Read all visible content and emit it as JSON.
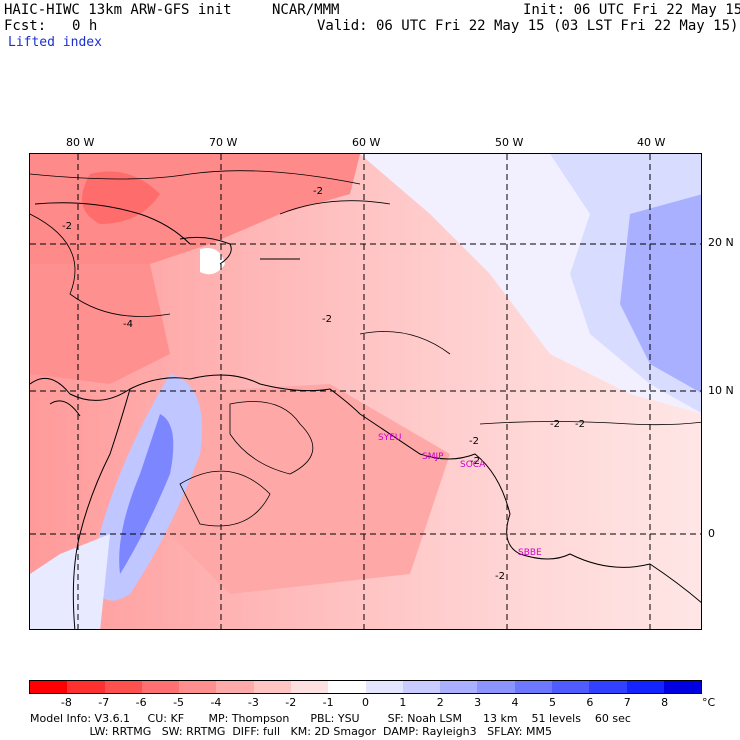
{
  "header": {
    "model_title": "HAIC-HIWC 13km ARW-GFS init",
    "org": "NCAR/MMM",
    "init": "Init: 06 UTC Fri 22 May 15",
    "fcst_label": "Fcst:",
    "fcst_value": "0 h",
    "valid": "Valid: 06 UTC Fri 22 May 15 (03 LST Fri 22 May 15)",
    "field": "Lifted index"
  },
  "map": {
    "lon_labels": [
      "80 W",
      "70 W",
      "60 W",
      "50 W",
      "40 W"
    ],
    "lat_labels": [
      "20 N",
      "10 N",
      "0"
    ],
    "contour_labels": [
      "-2",
      "-2",
      "-4",
      "-2",
      "-2",
      "-2",
      "-2",
      "-2",
      "-2"
    ],
    "stations": [
      "SYEU",
      "SMJP",
      "SOCA",
      "SBBE"
    ]
  },
  "colorbar": {
    "colors": [
      "#ff0000",
      "#ff3030",
      "#ff5050",
      "#ff7070",
      "#ff8e8e",
      "#ffaaaa",
      "#ffc4c4",
      "#ffe0e0",
      "#ffffff",
      "#e4e6ff",
      "#c8ccff",
      "#aab0ff",
      "#8c94ff",
      "#6e78ff",
      "#505cff",
      "#3240ff",
      "#1424ff",
      "#0000e0"
    ],
    "ticks": [
      "-8",
      "-7",
      "-6",
      "-5",
      "-4",
      "-3",
      "-2",
      "-1",
      "0",
      "1",
      "2",
      "3",
      "4",
      "5",
      "6",
      "7",
      "8"
    ],
    "unit": "°C"
  },
  "footer": {
    "line1": "Model Info: V3.6.1     CU: KF       MP: Thompson      PBL: YSU        SF: Noah LSM      13 km    51 levels    60 sec",
    "line2": "                 LW: RRTMG   SW: RRTMG  DIFF: full   KM: 2D Smagor  DAMP: Rayleigh3   SFLAY: MM5"
  }
}
